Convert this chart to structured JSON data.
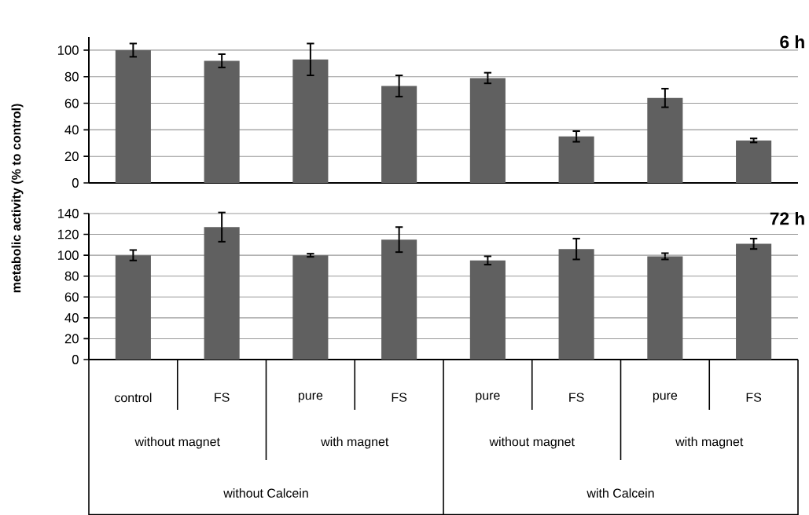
{
  "chart_data": [
    {
      "type": "bar",
      "title": "6 h",
      "ylabel": "metabolic activity (% to control)",
      "color": "#606060",
      "values": [
        100,
        92,
        93,
        73,
        79,
        35,
        64,
        32
      ],
      "errors": [
        5,
        5,
        12,
        8,
        4,
        4,
        7,
        1.5
      ],
      "ylim": [
        0,
        110
      ],
      "yticks": [
        0,
        20,
        40,
        60,
        80,
        100
      ],
      "grid": "y",
      "tick_labels": "y"
    },
    {
      "type": "bar",
      "title": "72 h",
      "categories": [
        "control",
        "FS",
        "pure",
        "FS",
        "pure",
        "FS",
        "pure",
        "FS"
      ],
      "color": "#606060",
      "values": [
        100,
        127,
        100,
        115,
        95,
        106,
        99,
        111
      ],
      "errors": [
        5,
        14,
        1.5,
        12,
        4,
        10,
        3,
        5
      ],
      "ylim": [
        0,
        140
      ],
      "yticks": [
        0,
        20,
        40,
        60,
        80,
        100,
        120,
        140
      ],
      "grid": "y",
      "annotations": [
        "without magnet",
        "with magnet",
        "without magnet",
        "with magnet",
        "without Calcein",
        "with Calcein"
      ]
    }
  ]
}
